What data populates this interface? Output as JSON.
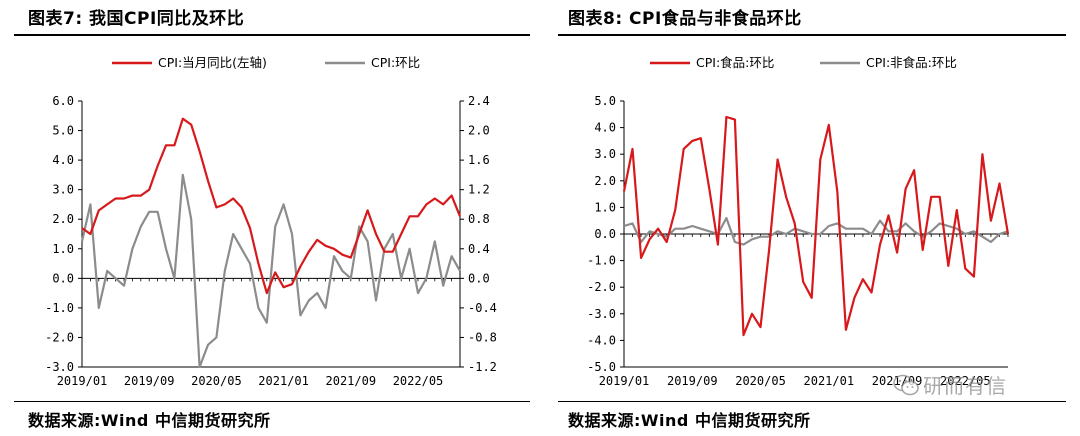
{
  "chart_data": [
    {
      "type": "line",
      "title": "图表7:  我国CPI同比及环比",
      "source": "数据来源:Wind 中信期货研究所",
      "x_tick_labels": [
        "2019/01",
        "2019/09",
        "2020/05",
        "2021/01",
        "2021/09",
        "2022/05"
      ],
      "x_tick_indices": [
        0,
        8,
        16,
        24,
        32,
        40
      ],
      "y_left": {
        "min": -3.0,
        "max": 6.0,
        "ticks": [
          "6.0",
          "5.0",
          "4.0",
          "3.0",
          "2.0",
          "1.0",
          "0.0",
          "-1.0",
          "-2.0",
          "-3.0"
        ]
      },
      "y_right": {
        "min": -1.2,
        "max": 2.4,
        "ticks": [
          "2.4",
          "2.0",
          "1.6",
          "1.2",
          "0.8",
          "0.4",
          "0.0",
          "-0.4",
          "-0.8",
          "-1.2"
        ]
      },
      "series": [
        {
          "name": "CPI:当月同比(左轴)",
          "axis": "left",
          "color": "#d7191c",
          "values": [
            1.7,
            1.5,
            2.3,
            2.5,
            2.7,
            2.7,
            2.8,
            2.8,
            3.0,
            3.8,
            4.5,
            4.5,
            5.4,
            5.2,
            4.3,
            3.3,
            2.4,
            2.5,
            2.7,
            2.4,
            1.7,
            0.5,
            -0.5,
            0.2,
            -0.3,
            -0.2,
            0.4,
            0.9,
            1.3,
            1.1,
            1.0,
            0.8,
            0.7,
            1.5,
            2.3,
            1.5,
            0.9,
            0.9,
            1.5,
            2.1,
            2.1,
            2.5,
            2.7,
            2.5,
            2.8,
            2.1
          ]
        },
        {
          "name": "CPI:环比",
          "axis": "right",
          "color": "#8c8c8c",
          "values": [
            0.5,
            1.0,
            -0.4,
            0.1,
            0.0,
            -0.1,
            0.4,
            0.7,
            0.9,
            0.9,
            0.4,
            0.0,
            1.4,
            0.8,
            -1.2,
            -0.9,
            -0.8,
            0.1,
            0.6,
            0.4,
            0.2,
            -0.4,
            -0.6,
            0.7,
            1.0,
            0.6,
            -0.5,
            -0.3,
            -0.2,
            -0.4,
            0.3,
            0.1,
            0.0,
            0.7,
            0.5,
            -0.3,
            0.4,
            0.6,
            0.0,
            0.4,
            -0.2,
            0.0,
            0.5,
            -0.1,
            0.3,
            0.1
          ]
        }
      ]
    },
    {
      "type": "line",
      "title": "图表8:  CPI食品与非食品环比",
      "source": "数据来源:Wind 中信期货研究所",
      "x_tick_labels": [
        "2019/01",
        "2019/09",
        "2020/05",
        "2021/01",
        "2021/09",
        "2022/05"
      ],
      "x_tick_indices": [
        0,
        8,
        16,
        24,
        32,
        40
      ],
      "y_left": {
        "min": -5.0,
        "max": 5.0,
        "ticks": [
          "5.0",
          "4.0",
          "3.0",
          "2.0",
          "1.0",
          "0.0",
          "-1.0",
          "-2.0",
          "-3.0",
          "-4.0",
          "-5.0"
        ]
      },
      "series": [
        {
          "name": "CPI:食品:环比",
          "axis": "left",
          "color": "#d7191c",
          "values": [
            1.6,
            3.2,
            -0.9,
            -0.2,
            0.2,
            -0.3,
            0.9,
            3.2,
            3.5,
            3.6,
            1.7,
            -0.4,
            4.4,
            4.3,
            -3.8,
            -3.0,
            -3.5,
            -0.6,
            2.8,
            1.4,
            0.4,
            -1.8,
            -2.4,
            2.8,
            4.1,
            1.6,
            -3.6,
            -2.4,
            -1.7,
            -2.2,
            -0.4,
            0.7,
            -0.7,
            1.7,
            2.4,
            -0.6,
            1.4,
            1.4,
            -1.2,
            0.9,
            -1.3,
            -1.6,
            3.0,
            0.5,
            1.9,
            0.0
          ]
        },
        {
          "name": "CPI:非食品:环比",
          "axis": "left",
          "color": "#8c8c8c",
          "values": [
            0.3,
            0.4,
            -0.3,
            0.1,
            0.0,
            -0.1,
            0.2,
            0.2,
            0.3,
            0.2,
            0.1,
            0.0,
            0.6,
            -0.3,
            -0.4,
            -0.2,
            -0.1,
            -0.1,
            0.1,
            0.0,
            0.2,
            0.1,
            0.0,
            0.0,
            0.3,
            0.4,
            0.2,
            0.2,
            0.2,
            0.0,
            0.5,
            0.1,
            0.1,
            0.4,
            0.1,
            -0.1,
            0.1,
            0.4,
            0.3,
            0.2,
            0.0,
            0.1,
            -0.1,
            -0.3,
            0.0,
            0.1
          ]
        }
      ]
    }
  ],
  "watermark": {
    "text": "研而有信",
    "icon": "wechat-icon"
  }
}
